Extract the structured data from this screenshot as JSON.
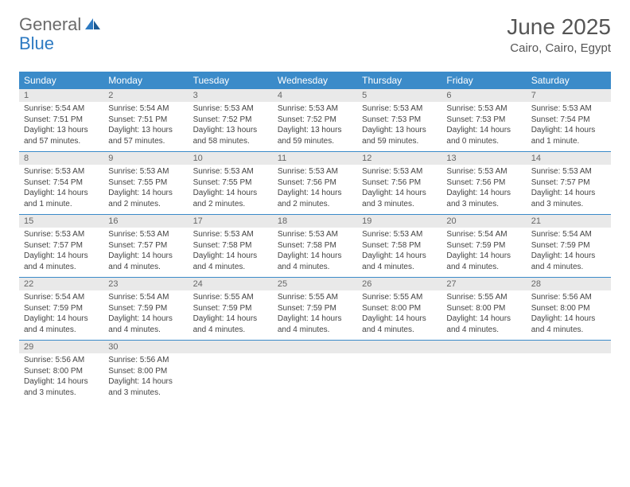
{
  "logo": {
    "text1": "General",
    "text2": "Blue"
  },
  "title": "June 2025",
  "location": "Cairo, Cairo, Egypt",
  "colors": {
    "header_bg": "#3b8bc9",
    "header_text": "#ffffff",
    "daynum_bg": "#e9e9e9",
    "daynum_text": "#666666",
    "body_text": "#444444",
    "rule": "#3b8bc9",
    "logo_gray": "#6b6b6b",
    "logo_blue": "#2d7ac2",
    "title_color": "#555555"
  },
  "day_headers": [
    "Sunday",
    "Monday",
    "Tuesday",
    "Wednesday",
    "Thursday",
    "Friday",
    "Saturday"
  ],
  "weeks": [
    [
      {
        "num": "1",
        "sunrise": "5:54 AM",
        "sunset": "7:51 PM",
        "daylight": "13 hours and 57 minutes."
      },
      {
        "num": "2",
        "sunrise": "5:54 AM",
        "sunset": "7:51 PM",
        "daylight": "13 hours and 57 minutes."
      },
      {
        "num": "3",
        "sunrise": "5:53 AM",
        "sunset": "7:52 PM",
        "daylight": "13 hours and 58 minutes."
      },
      {
        "num": "4",
        "sunrise": "5:53 AM",
        "sunset": "7:52 PM",
        "daylight": "13 hours and 59 minutes."
      },
      {
        "num": "5",
        "sunrise": "5:53 AM",
        "sunset": "7:53 PM",
        "daylight": "13 hours and 59 minutes."
      },
      {
        "num": "6",
        "sunrise": "5:53 AM",
        "sunset": "7:53 PM",
        "daylight": "14 hours and 0 minutes."
      },
      {
        "num": "7",
        "sunrise": "5:53 AM",
        "sunset": "7:54 PM",
        "daylight": "14 hours and 1 minute."
      }
    ],
    [
      {
        "num": "8",
        "sunrise": "5:53 AM",
        "sunset": "7:54 PM",
        "daylight": "14 hours and 1 minute."
      },
      {
        "num": "9",
        "sunrise": "5:53 AM",
        "sunset": "7:55 PM",
        "daylight": "14 hours and 2 minutes."
      },
      {
        "num": "10",
        "sunrise": "5:53 AM",
        "sunset": "7:55 PM",
        "daylight": "14 hours and 2 minutes."
      },
      {
        "num": "11",
        "sunrise": "5:53 AM",
        "sunset": "7:56 PM",
        "daylight": "14 hours and 2 minutes."
      },
      {
        "num": "12",
        "sunrise": "5:53 AM",
        "sunset": "7:56 PM",
        "daylight": "14 hours and 3 minutes."
      },
      {
        "num": "13",
        "sunrise": "5:53 AM",
        "sunset": "7:56 PM",
        "daylight": "14 hours and 3 minutes."
      },
      {
        "num": "14",
        "sunrise": "5:53 AM",
        "sunset": "7:57 PM",
        "daylight": "14 hours and 3 minutes."
      }
    ],
    [
      {
        "num": "15",
        "sunrise": "5:53 AM",
        "sunset": "7:57 PM",
        "daylight": "14 hours and 4 minutes."
      },
      {
        "num": "16",
        "sunrise": "5:53 AM",
        "sunset": "7:57 PM",
        "daylight": "14 hours and 4 minutes."
      },
      {
        "num": "17",
        "sunrise": "5:53 AM",
        "sunset": "7:58 PM",
        "daylight": "14 hours and 4 minutes."
      },
      {
        "num": "18",
        "sunrise": "5:53 AM",
        "sunset": "7:58 PM",
        "daylight": "14 hours and 4 minutes."
      },
      {
        "num": "19",
        "sunrise": "5:53 AM",
        "sunset": "7:58 PM",
        "daylight": "14 hours and 4 minutes."
      },
      {
        "num": "20",
        "sunrise": "5:54 AM",
        "sunset": "7:59 PM",
        "daylight": "14 hours and 4 minutes."
      },
      {
        "num": "21",
        "sunrise": "5:54 AM",
        "sunset": "7:59 PM",
        "daylight": "14 hours and 4 minutes."
      }
    ],
    [
      {
        "num": "22",
        "sunrise": "5:54 AM",
        "sunset": "7:59 PM",
        "daylight": "14 hours and 4 minutes."
      },
      {
        "num": "23",
        "sunrise": "5:54 AM",
        "sunset": "7:59 PM",
        "daylight": "14 hours and 4 minutes."
      },
      {
        "num": "24",
        "sunrise": "5:55 AM",
        "sunset": "7:59 PM",
        "daylight": "14 hours and 4 minutes."
      },
      {
        "num": "25",
        "sunrise": "5:55 AM",
        "sunset": "7:59 PM",
        "daylight": "14 hours and 4 minutes."
      },
      {
        "num": "26",
        "sunrise": "5:55 AM",
        "sunset": "8:00 PM",
        "daylight": "14 hours and 4 minutes."
      },
      {
        "num": "27",
        "sunrise": "5:55 AM",
        "sunset": "8:00 PM",
        "daylight": "14 hours and 4 minutes."
      },
      {
        "num": "28",
        "sunrise": "5:56 AM",
        "sunset": "8:00 PM",
        "daylight": "14 hours and 4 minutes."
      }
    ],
    [
      {
        "num": "29",
        "sunrise": "5:56 AM",
        "sunset": "8:00 PM",
        "daylight": "14 hours and 3 minutes."
      },
      {
        "num": "30",
        "sunrise": "5:56 AM",
        "sunset": "8:00 PM",
        "daylight": "14 hours and 3 minutes."
      },
      null,
      null,
      null,
      null,
      null
    ]
  ],
  "labels": {
    "sunrise": "Sunrise:",
    "sunset": "Sunset:",
    "daylight": "Daylight:"
  }
}
